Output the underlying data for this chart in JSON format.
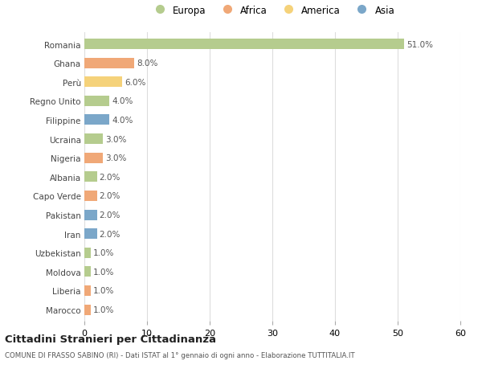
{
  "countries": [
    "Romania",
    "Ghana",
    "Perù",
    "Regno Unito",
    "Filippine",
    "Ucraina",
    "Nigeria",
    "Albania",
    "Capo Verde",
    "Pakistan",
    "Iran",
    "Uzbekistan",
    "Moldova",
    "Liberia",
    "Marocco"
  ],
  "values": [
    51.0,
    8.0,
    6.0,
    4.0,
    4.0,
    3.0,
    3.0,
    2.0,
    2.0,
    2.0,
    2.0,
    1.0,
    1.0,
    1.0,
    1.0
  ],
  "continents": [
    "Europa",
    "Africa",
    "America",
    "Europa",
    "Asia",
    "Europa",
    "Africa",
    "Europa",
    "Africa",
    "Asia",
    "Asia",
    "Europa",
    "Europa",
    "Africa",
    "Africa"
  ],
  "continent_colors": {
    "Europa": "#b5cc8e",
    "Africa": "#f0a877",
    "America": "#f5d27a",
    "Asia": "#7ba7c9"
  },
  "legend_order": [
    "Europa",
    "Africa",
    "America",
    "Asia"
  ],
  "xlim": [
    0,
    60
  ],
  "xticks": [
    0,
    10,
    20,
    30,
    40,
    50,
    60
  ],
  "title": "Cittadini Stranieri per Cittadinanza",
  "subtitle": "COMUNE DI FRASSO SABINO (RI) - Dati ISTAT al 1° gennaio di ogni anno - Elaborazione TUTTITALIA.IT",
  "background_color": "#ffffff",
  "bar_height": 0.55,
  "grid_color": "#dddddd"
}
